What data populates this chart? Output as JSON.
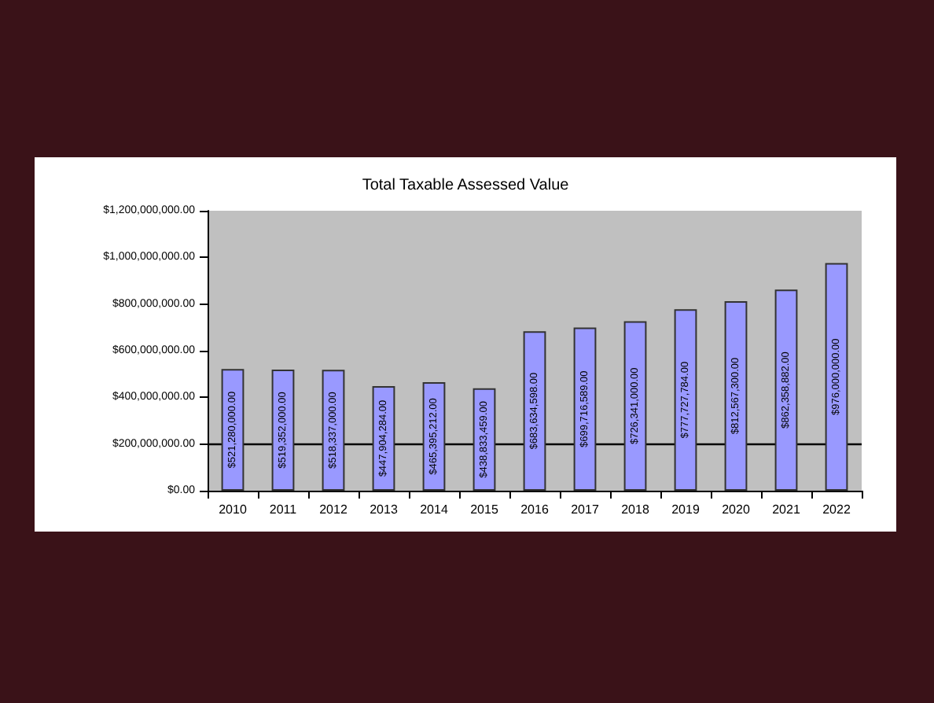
{
  "chart_data": {
    "type": "bar",
    "title": "Total Taxable Assessed Value",
    "categories": [
      "2010",
      "2011",
      "2012",
      "2013",
      "2014",
      "2015",
      "2016",
      "2017",
      "2018",
      "2019",
      "2020",
      "2021",
      "2022"
    ],
    "values": [
      521280000,
      519352000,
      518337000,
      447904284,
      465395212,
      438833459,
      683634598,
      699716589,
      726341000,
      777727784,
      812567300,
      862358882,
      976000000
    ],
    "value_labels": [
      "$521,280,000.00",
      "$519,352,000.00",
      "$518,337,000.00",
      "$447,904,284.00",
      "$465,395,212.00",
      "$438,833,459.00",
      "$683,634,598.00",
      "$699,716,589.00",
      "$726,341,000.00",
      "$777,727,784.00",
      "$812,567,300.00",
      "$862,358,882.00",
      "$976,000,000.00"
    ],
    "color": "#9999ff",
    "ylim": [
      0,
      1200000000
    ],
    "yticks": [
      {
        "value": 0,
        "label": "$0.00"
      },
      {
        "value": 200000000,
        "label": "$200,000,000.00"
      },
      {
        "value": 400000000,
        "label": "$400,000,000.00"
      },
      {
        "value": 600000000,
        "label": "$600,000,000.00"
      },
      {
        "value": 800000000,
        "label": "$800,000,000.00"
      },
      {
        "value": 1000000000,
        "label": "$1,000,000,000.00"
      },
      {
        "value": 1200000000,
        "label": "$1,200,000,000.00"
      }
    ],
    "ref_lines": [
      {
        "axis": "y",
        "value": 200000000,
        "color": "#000000"
      }
    ],
    "grid": false
  }
}
